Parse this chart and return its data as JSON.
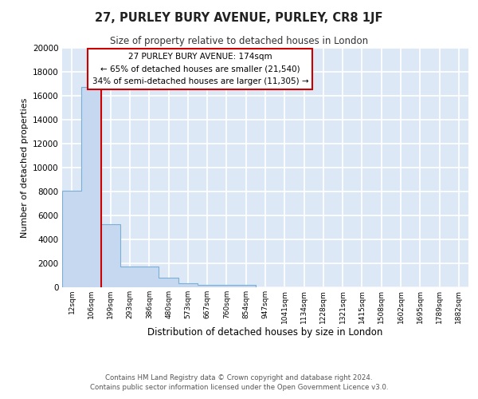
{
  "title": "27, PURLEY BURY AVENUE, PURLEY, CR8 1JF",
  "subtitle": "Size of property relative to detached houses in London",
  "xlabel": "Distribution of detached houses by size in London",
  "ylabel": "Number of detached properties",
  "bin_labels": [
    "12sqm",
    "106sqm",
    "199sqm",
    "293sqm",
    "386sqm",
    "480sqm",
    "573sqm",
    "667sqm",
    "760sqm",
    "854sqm",
    "947sqm",
    "1041sqm",
    "1134sqm",
    "1228sqm",
    "1321sqm",
    "1415sqm",
    "1508sqm",
    "1602sqm",
    "1695sqm",
    "1789sqm",
    "1882sqm"
  ],
  "bar_heights": [
    8100,
    16700,
    5300,
    1750,
    800,
    320,
    230,
    210,
    195,
    0,
    0,
    0,
    0,
    0,
    0,
    0,
    0,
    0,
    0,
    0,
    0
  ],
  "bar_color": "#c5d8f0",
  "bar_edge_color": "#7baed4",
  "background_color": "#dce8f5",
  "grid_color": "#ffffff",
  "property_label": "27 PURLEY BURY AVENUE: 174sqm",
  "annotation_line1": "← 65% of detached houses are smaller (21,540)",
  "annotation_line2": "34% of semi-detached houses are larger (11,305) →",
  "vline_color": "#cc0000",
  "annotation_box_color": "#ffffff",
  "annotation_box_edge": "#cc0000",
  "ylim": [
    0,
    20000
  ],
  "yticks": [
    0,
    2000,
    4000,
    6000,
    8000,
    10000,
    12000,
    14000,
    16000,
    18000,
    20000
  ],
  "footer_line1": "Contains HM Land Registry data © Crown copyright and database right 2024.",
  "footer_line2": "Contains public sector information licensed under the Open Government Licence v3.0.",
  "vline_at_index": 2
}
